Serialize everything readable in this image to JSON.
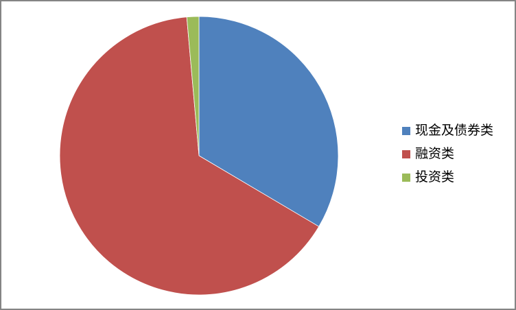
{
  "window": {
    "background": "#FFFFFF",
    "border_color": "#848484"
  },
  "chart_data": {
    "type": "pie",
    "title": "",
    "slices": [
      {
        "label": "现金及债券类",
        "value": 33.5,
        "color": "#4F81BD"
      },
      {
        "label": "融资类",
        "value": 65.1,
        "color": "#C0504D"
      },
      {
        "label": "投资类",
        "value": 1.4,
        "color": "#9BBB59"
      }
    ],
    "unit": "percent",
    "start_angle_deg": 0,
    "direction": "clockwise",
    "legend_position": "right",
    "data_labels": false,
    "gridlines": false
  }
}
